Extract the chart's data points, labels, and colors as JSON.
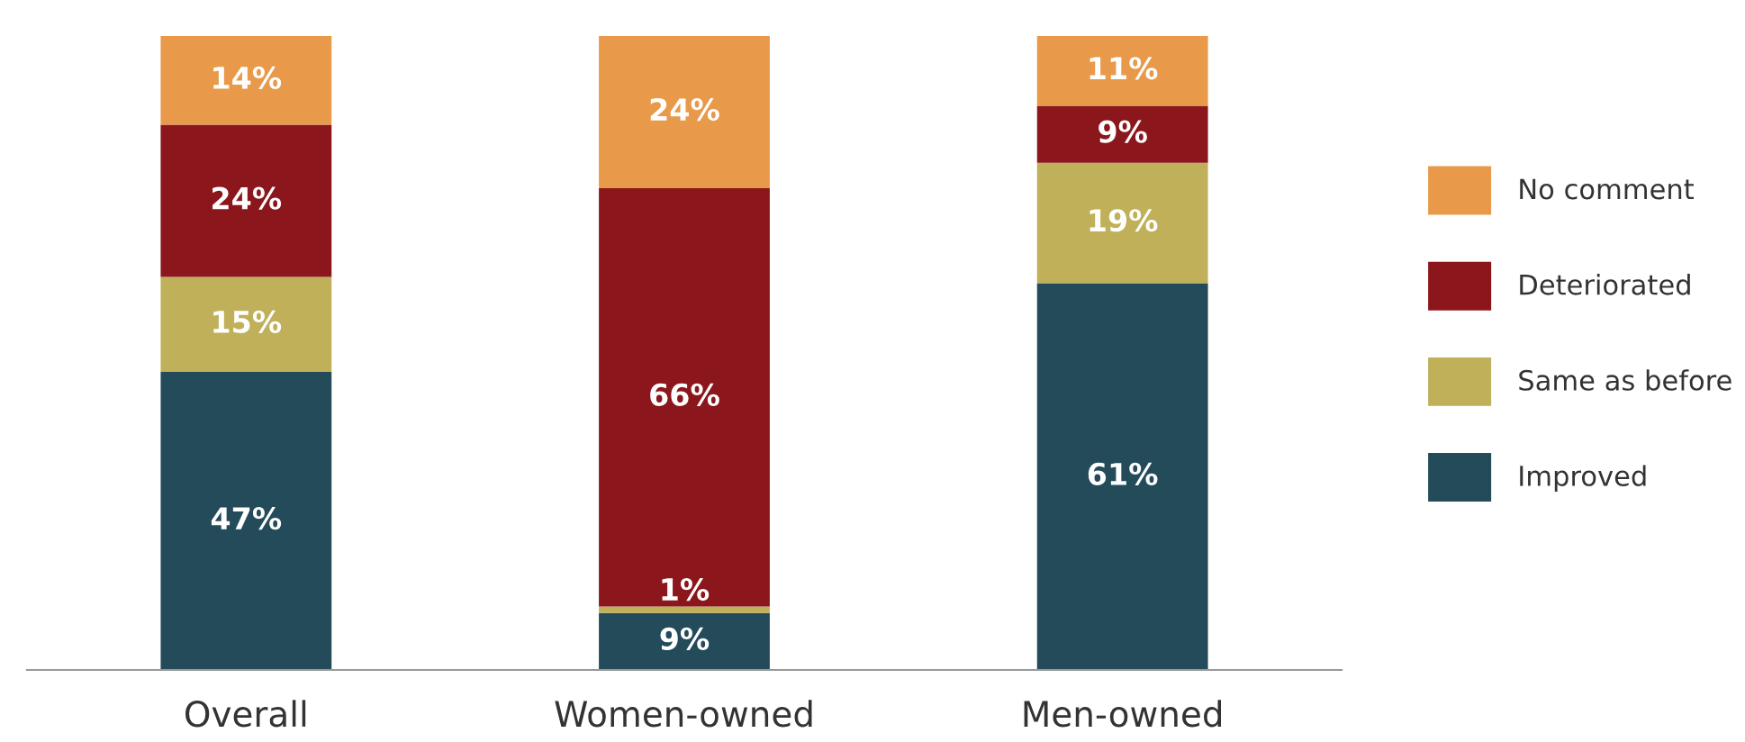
{
  "chart_data": {
    "type": "bar",
    "stacked": true,
    "legend": "right",
    "grid": false,
    "categories": [
      "Overall",
      "Women-owned",
      "Men-owned"
    ],
    "series": [
      {
        "name": "Improved",
        "color": "#244b5a",
        "values": [
          47,
          9,
          61
        ],
        "value_labels": [
          "47%",
          "9%",
          "61%"
        ]
      },
      {
        "name": "Same as before",
        "color": "#c0b05a",
        "values": [
          15,
          1,
          19
        ],
        "value_labels": [
          "15%",
          "1%",
          "19%"
        ]
      },
      {
        "name": "Deteriorated",
        "color": "#8b161b",
        "values": [
          24,
          66,
          9
        ],
        "value_labels": [
          "24%",
          "66%",
          "9%"
        ]
      },
      {
        "name": "No comment",
        "color": "#e8994a",
        "values": [
          14,
          24,
          11
        ],
        "value_labels": [
          "14%",
          "24%",
          "11%"
        ]
      }
    ]
  }
}
